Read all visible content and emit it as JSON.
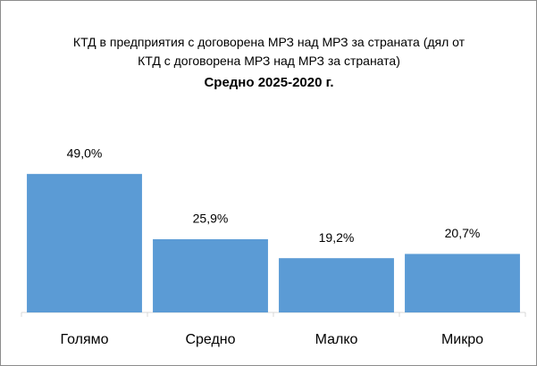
{
  "chart_data": {
    "type": "bar",
    "title": "КТД в предприятия с договорена МРЗ над МРЗ за страната (дял от КТД с договорена МРЗ над МРЗ за страната)",
    "subtitle": "Средно 2025-2020 г.",
    "categories": [
      "Голямо",
      "Средно",
      "Малко",
      "Микро"
    ],
    "values": [
      49.0,
      25.9,
      19.2,
      20.7
    ],
    "value_labels": [
      "49,0%",
      "25,9%",
      "19,2%",
      "20,7%"
    ],
    "color": "#5b9bd5",
    "ylim": [
      0,
      60
    ]
  }
}
